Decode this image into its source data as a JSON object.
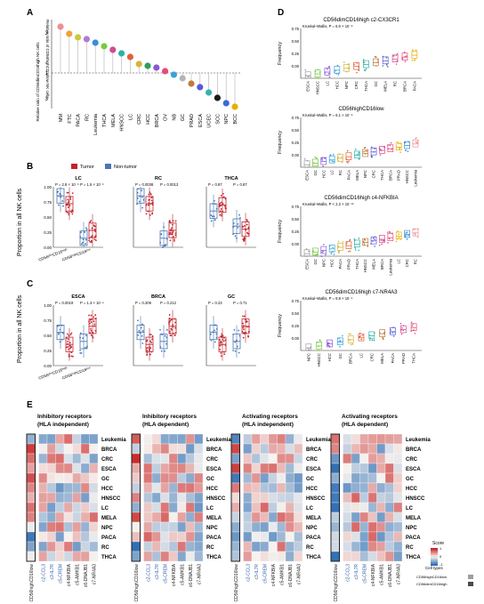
{
  "panel_labels": {
    "A": "A",
    "B": "B",
    "C": "C",
    "D": "D",
    "E": "E"
  },
  "colors": {
    "tumor": "#c0242d",
    "nontumor": "#4a76b5",
    "stem": "#bdbdbd",
    "heat_low": "#2f6fb4",
    "heat_mid": "#f6f2ef",
    "heat_high": "#c92a2a",
    "celltype_a": "#9e9e9e",
    "celltype_b": "#4a4a4a"
  },
  "panelA": {
    "ylabel_top": "Relative ratio of CD56highCD16low NK cells",
    "ylabel_bottom": "Relative ratio of CD56dimCD16high NK cells",
    "tick_top": "3",
    "tick_mid": "1",
    "tick_bottom": "3",
    "cancers": [
      "MM",
      "FTC",
      "PACA",
      "RC",
      "Leukemia",
      "THCA",
      "MELA",
      "HNSCC",
      "LC",
      "CRC",
      "HCC",
      "BRCA",
      "OV",
      "NB",
      "GC",
      "PRAD",
      "ESCA",
      "UCEC",
      "SCC",
      "NPC",
      "BCC"
    ],
    "dot_colors": [
      "#f28e8e",
      "#f2a13c",
      "#c9c93a",
      "#b07ad6",
      "#3a8ed6",
      "#7ac943",
      "#d14b8f",
      "#2bb3a5",
      "#e0603a",
      "#d6b43a",
      "#2aa05a",
      "#8a5ad6",
      "#e64a7a",
      "#36a3d9",
      "#b5b5b5",
      "#c07a3a",
      "#5a5ad6",
      "#38b0b0",
      "#1a1a1a",
      "#3a6ad6",
      "#e6b000"
    ]
  },
  "panelB": {
    "legend_tumor": "Tumor",
    "legend_nontumor": "Non-tumor",
    "ylabel": "Proportion in all NK cells",
    "xlabel_1": "CD56dimCD16high",
    "xlabel_2": "CD56highCD16low",
    "yticks": [
      "1.00",
      "0.75",
      "0.50",
      "0.25",
      "0.00"
    ],
    "plots": [
      {
        "title": "LC",
        "p1": "P = 2.8 × 10⁻⁶",
        "p2": "P = 1.5 × 10⁻⁶"
      },
      {
        "title": "RC",
        "p1": "P = 0.0038",
        "p2": "P = 0.0013"
      },
      {
        "title": "THCA",
        "p1": "P = 0.87",
        "p2": "P = 0.87"
      }
    ]
  },
  "panelC": {
    "ylabel": "Proportion in all NK cells",
    "yticks": [
      "1.00",
      "0.75",
      "0.50",
      "0.25",
      "0.00"
    ],
    "plots": [
      {
        "title": "ESCA",
        "p1": "P = 0.0019",
        "p2": "P = 1.3 × 10⁻⁴"
      },
      {
        "title": "BRCA",
        "p1": "P = 0.209",
        "p2": "P = 0.212"
      },
      {
        "title": "GC",
        "p1": "P = 0.23",
        "p2": "P = 0.71"
      }
    ]
  },
  "panelD": {
    "ylabel": "Frequency",
    "yticks": [
      "0.75",
      "0.50",
      "0.25",
      "0.00"
    ],
    "plots": [
      {
        "title": "CD56dimCD16high c2-CX3CR1",
        "stat": "Kruskal–Wallis, P = 6.0 × 10⁻⁸",
        "cats": [
          "ESCA",
          "HNSCC",
          "LC",
          "HCC",
          "NPC",
          "CRC",
          "THCA",
          "GC",
          "MELA",
          "RC",
          "BRCA",
          "PACA"
        ]
      },
      {
        "title": "CD56highCD16low",
        "stat": "Kruskal–Wallis, P = 6.1 × 10⁻⁸",
        "cats": [
          "ESCA",
          "GC",
          "HCC",
          "LC",
          "RC",
          "PACA",
          "MELA",
          "NPC",
          "CRC",
          "THCA",
          "BRCA",
          "PRAD",
          "HNSCC",
          "Leukemia"
        ]
      },
      {
        "title": "CD56dimCD16high c4-NFKBIA",
        "stat": "Kruskal–Wallis, P < 2.2 × 10⁻¹⁶",
        "cats": [
          "ESCA",
          "GC",
          "NPC",
          "HCC",
          "PACA",
          "PRAD",
          "THCA",
          "HNSCC",
          "MELA",
          "BRCA",
          "Leukemia",
          "LC",
          "CRC",
          "RC"
        ]
      },
      {
        "title": "CD56dimCD16high c7-NR4A3",
        "stat": "Kruskal–Wallis, P = 9.8 × 10⁻⁶",
        "cats": [
          "NPC",
          "HNSCC",
          "HCC",
          "GC",
          "BRCA",
          "LC",
          "CRC",
          "MELA",
          "PACA",
          "PRAD",
          "THCA"
        ]
      }
    ]
  },
  "panelE": {
    "heatmaps": [
      {
        "title1": "Inhibitory receptors",
        "title2": "(HLA independent)"
      },
      {
        "title1": "Inhibitory receptors",
        "title2": "(HLA dependent)"
      },
      {
        "title1": "Activating receptors",
        "title2": "(HLA independent)"
      },
      {
        "title1": "Activating receptors",
        "title2": "(HLA dependent)"
      }
    ],
    "rows": [
      "Leukemia",
      "BRCA",
      "CRC",
      "ESCA",
      "GC",
      "HCC",
      "HNSCC",
      "LC",
      "MELA",
      "NPC",
      "PACA",
      "RC",
      "THCA"
    ],
    "cols": [
      "CD56highCD16low",
      "c2-CCL3",
      "c3-IL7R",
      "c5-CREM",
      "c4-NFKBIA",
      "c5-AMKB1",
      "c6-DNAJB1",
      "c7-NR4A3"
    ],
    "col_blue": [
      false,
      true,
      true,
      true,
      false,
      false,
      false,
      false
    ],
    "scale_title": "Score",
    "scale_ticks": [
      "-1",
      "0",
      "1"
    ],
    "celltype_title": "Cell types",
    "celltype_a": "CD56highCD16low",
    "celltype_b": "CD56dimCD16high"
  }
}
